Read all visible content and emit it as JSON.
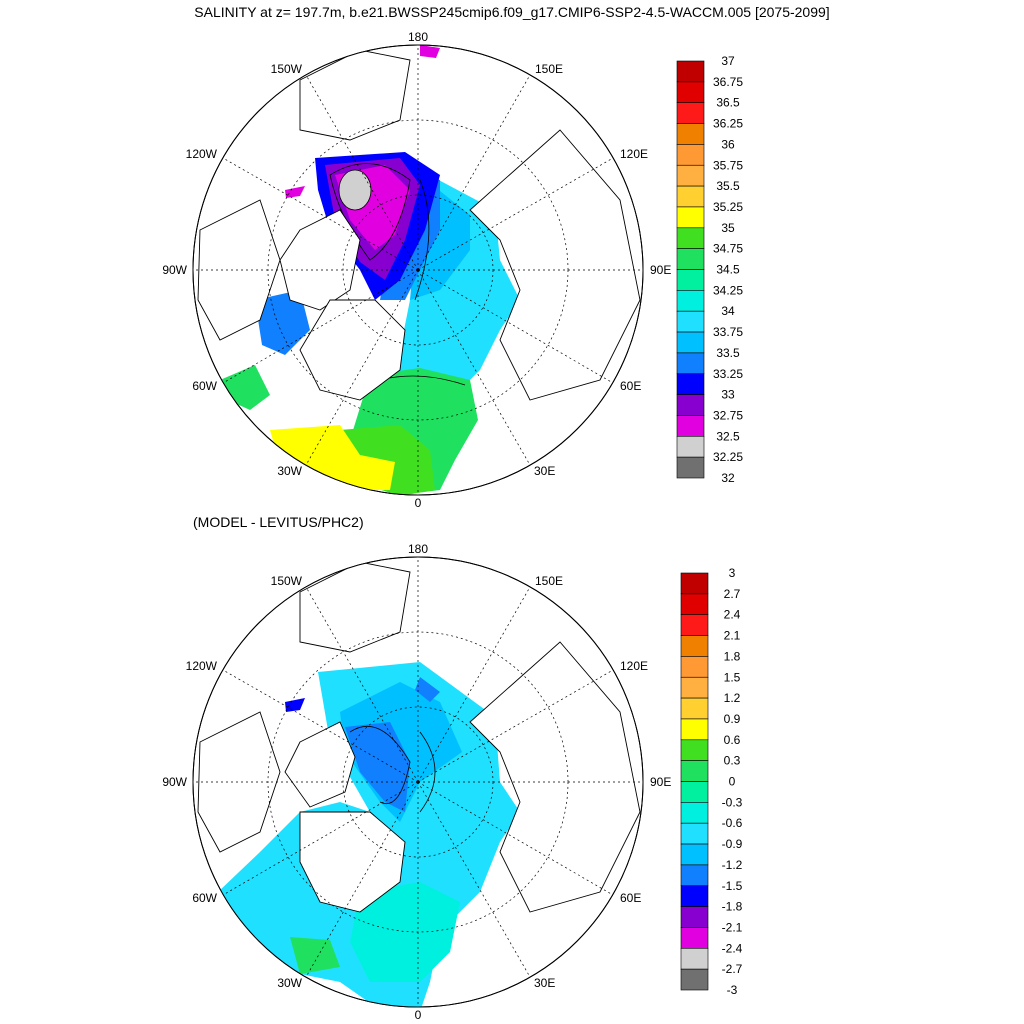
{
  "title": "SALINITY at z= 197.7m, b.e21.BWSSP245cmip6.f09_g17.CMIP6-SSP2-4.5-WACCM.005 [2075-2099]",
  "subtitle": "(MODEL - LEVITUS/PHC2)",
  "projection": "north polar stereographic",
  "longitude_labels": [
    "180",
    "150E",
    "120E",
    "90E",
    "60E",
    "30E",
    "0",
    "30W",
    "60W",
    "90W",
    "120W",
    "150W"
  ],
  "colorbars": {
    "salinity": {
      "labels": [
        "37",
        "36.75",
        "36.5",
        "36.25",
        "36",
        "35.75",
        "35.5",
        "35.25",
        "35",
        "34.75",
        "34.5",
        "34.25",
        "34",
        "33.75",
        "33.5",
        "33.25",
        "33",
        "32.75",
        "32.5",
        "32.25",
        "32"
      ],
      "colors": [
        "#c00000",
        "#e00000",
        "#ff1a1a",
        "#f08000",
        "#ff9933",
        "#ffb040",
        "#ffd030",
        "#ffff00",
        "#40e020",
        "#20e060",
        "#00f0a0",
        "#00f0e0",
        "#20e0ff",
        "#00c0ff",
        "#1080ff",
        "#0000ff",
        "#8800d0",
        "#e000e0",
        "#d0d0d0",
        "#707070"
      ]
    },
    "difference": {
      "labels": [
        "3",
        "2.7",
        "2.4",
        "2.1",
        "1.8",
        "1.5",
        "1.2",
        "0.9",
        "0.6",
        "0.3",
        "0",
        "-0.3",
        "-0.6",
        "-0.9",
        "-1.2",
        "-1.5",
        "-1.8",
        "-2.1",
        "-2.4",
        "-2.7",
        "-3"
      ],
      "colors": [
        "#c00000",
        "#e00000",
        "#ff1a1a",
        "#f08000",
        "#ff9933",
        "#ffb040",
        "#ffd030",
        "#ffff00",
        "#40e020",
        "#20e060",
        "#00f0a0",
        "#00f0e0",
        "#20e0ff",
        "#00c0ff",
        "#1080ff",
        "#0000ff",
        "#8800d0",
        "#e000e0",
        "#d0d0d0",
        "#707070"
      ]
    }
  }
}
